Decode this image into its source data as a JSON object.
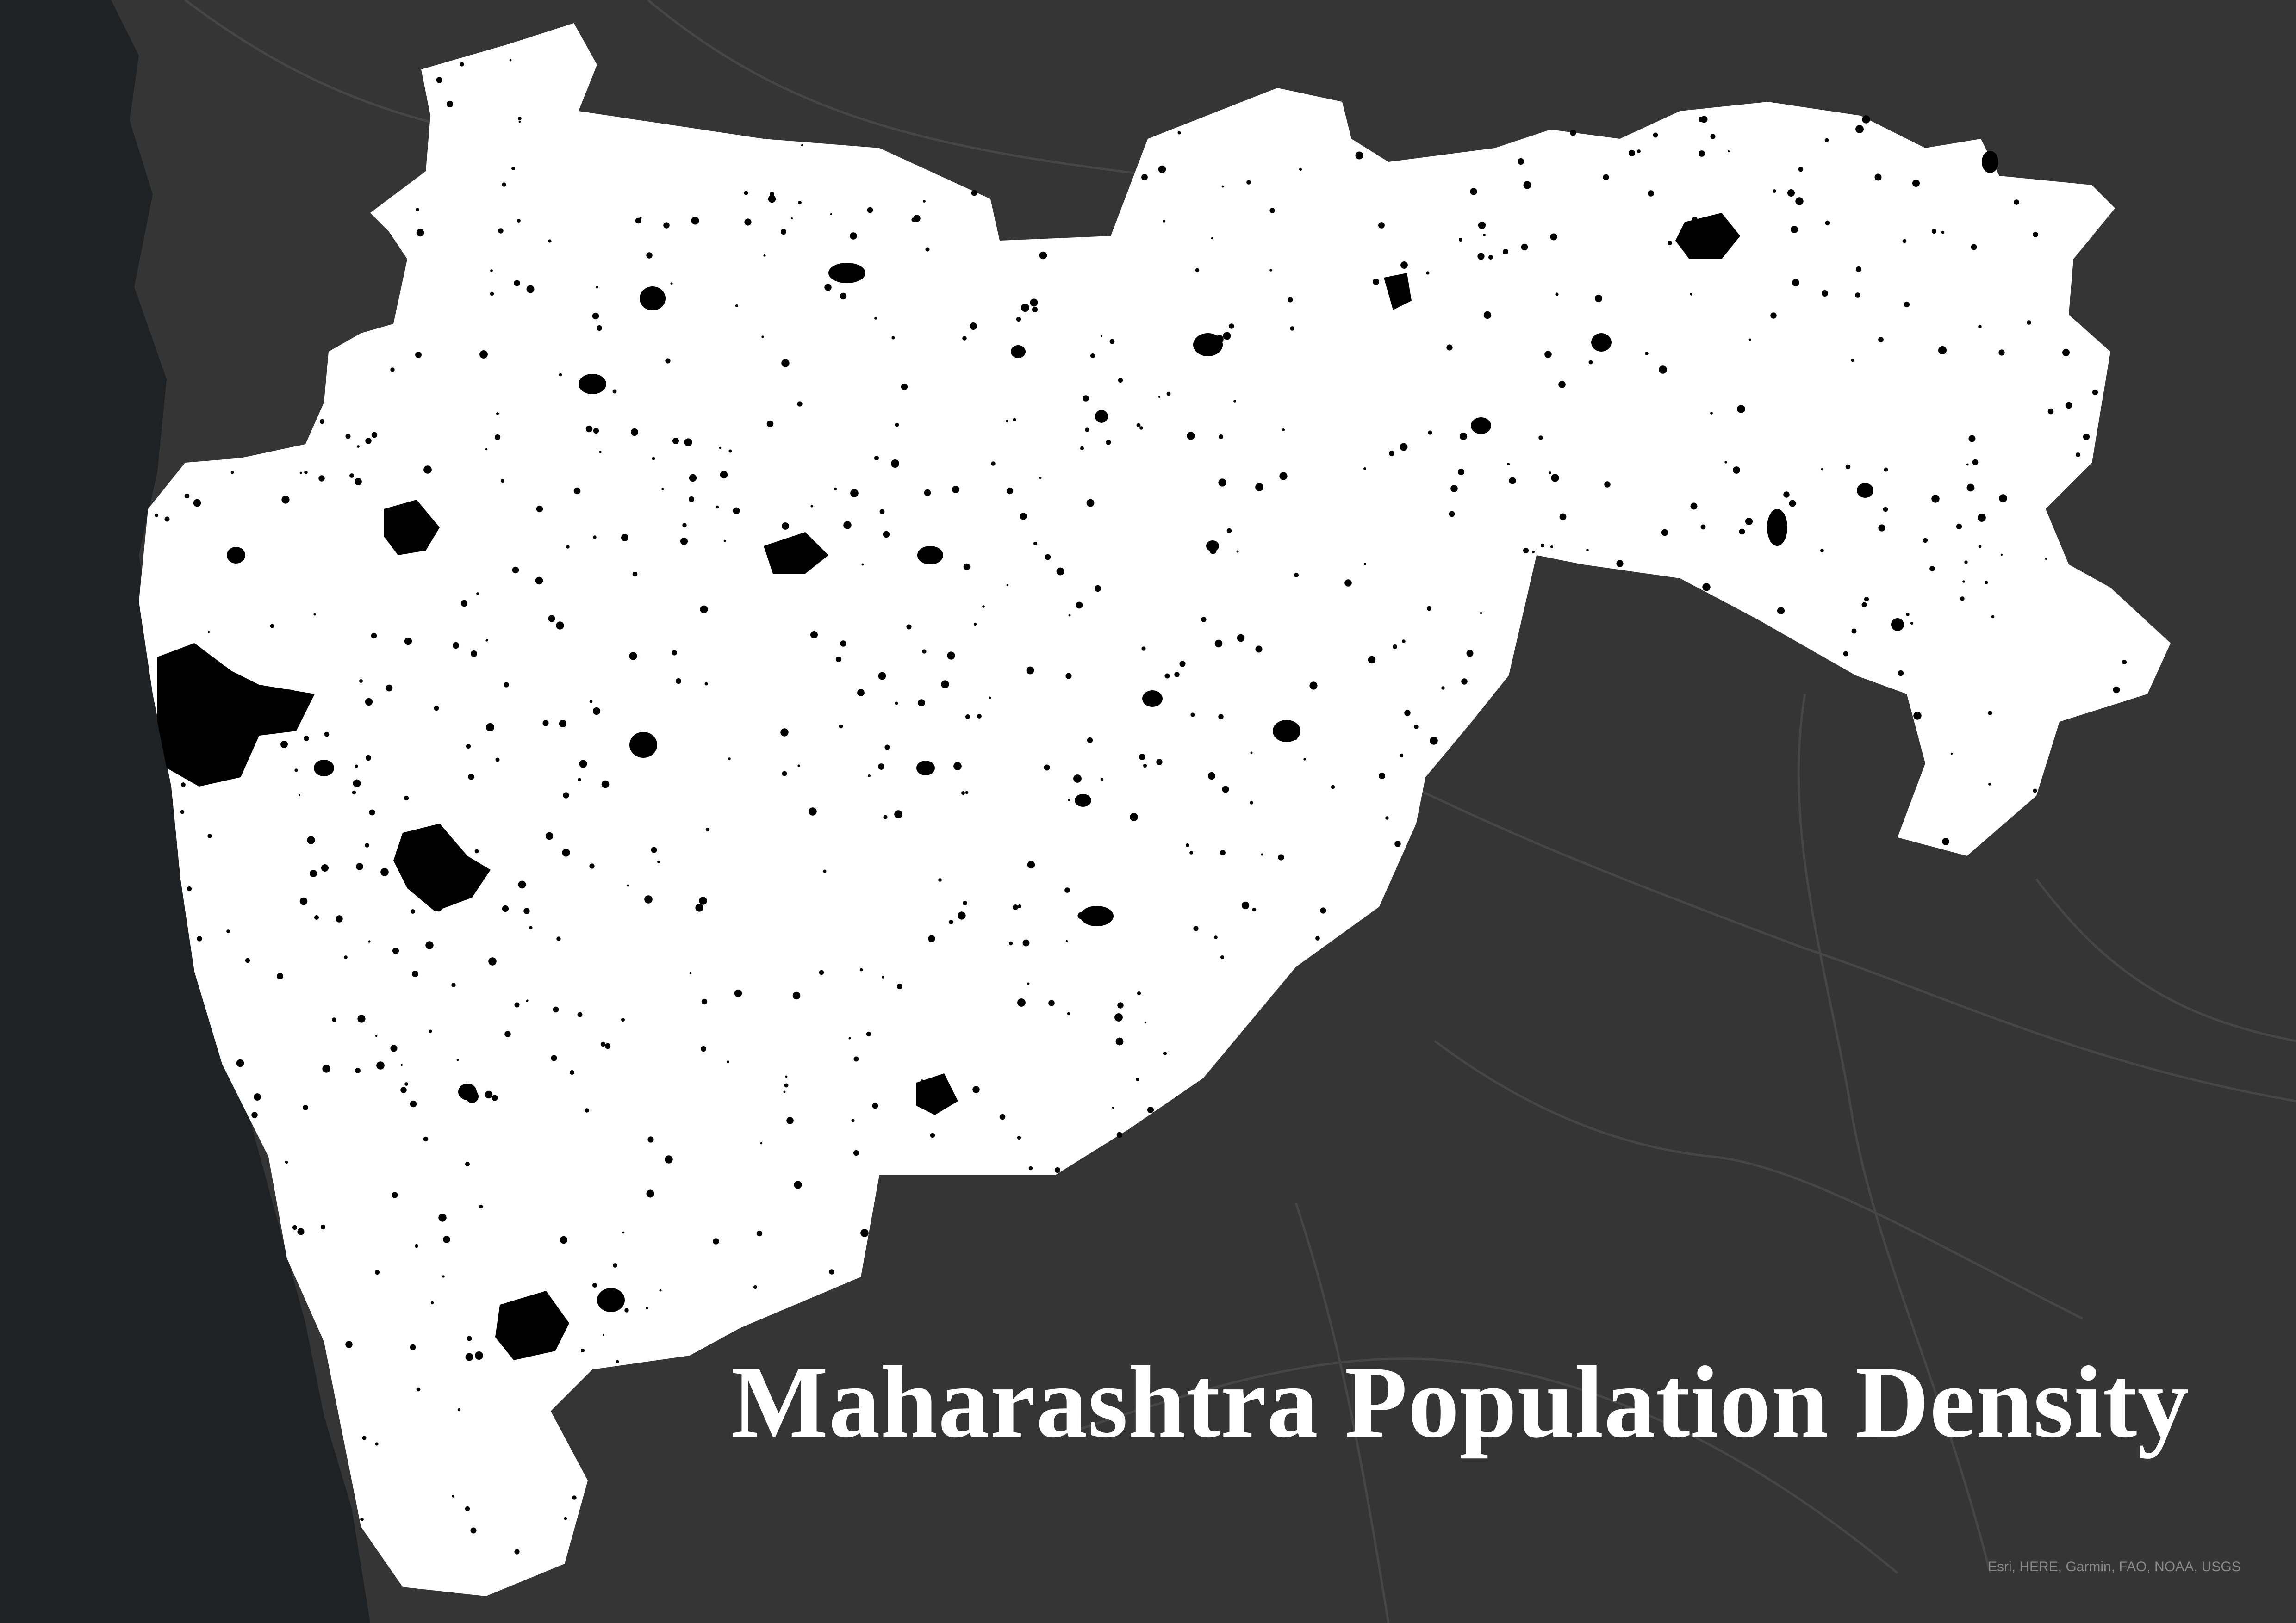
{
  "map": {
    "title": "Maharashtra Population Density",
    "attribution": "Esri, HERE, Garmin, FAO, NOAA, USGS",
    "basemap": "dark-gray-canvas",
    "colors": {
      "background": "#353535",
      "sea": "#1e2224",
      "region_fill": "#ffffff",
      "dense_settlement": "#000000",
      "boundary_lines": "#464646",
      "title": "#ffffff",
      "attribution": "#8a8a8a"
    }
  }
}
